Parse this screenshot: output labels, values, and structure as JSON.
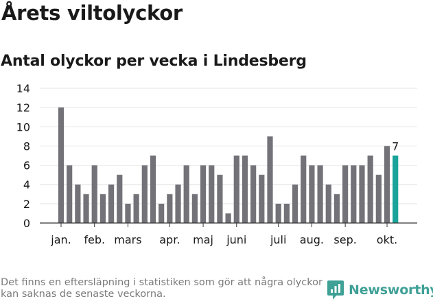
{
  "title": "Årets viltolyckor",
  "subtitle": "Antal olyckor per vecka i Lindesberg",
  "footnote": "Det finns en eftersläpning i statistiken som gör att några olyckor kan saknas de senaste veckorna.",
  "brand": {
    "name": "Newsworthy",
    "icon": "newsworthy-logo-icon"
  },
  "colors": {
    "bar": "#737278",
    "highlight": "#1aa39a",
    "grid": "#e6e6e6",
    "brand": "#3fa096"
  },
  "chart_data": {
    "type": "bar",
    "title": "Antal olyckor per vecka i Lindesberg",
    "xlabel": "",
    "ylabel": "",
    "ylim": [
      0,
      14
    ],
    "yticks": [
      0,
      2,
      4,
      6,
      8,
      10,
      12,
      14
    ],
    "grid": true,
    "weeks": [
      1,
      2,
      3,
      4,
      5,
      6,
      7,
      8,
      9,
      10,
      11,
      12,
      13,
      14,
      15,
      16,
      17,
      18,
      19,
      20,
      21,
      22,
      23,
      24,
      25,
      26,
      27,
      28,
      29,
      30,
      31,
      32,
      33,
      34,
      35,
      36,
      37,
      38,
      39,
      40,
      41
    ],
    "values": [
      12,
      6,
      4,
      3,
      6,
      3,
      4,
      5,
      2,
      3,
      6,
      7,
      2,
      3,
      4,
      6,
      3,
      6,
      6,
      5,
      1,
      7,
      7,
      6,
      5,
      9,
      2,
      2,
      4,
      7,
      6,
      6,
      4,
      3,
      6,
      6,
      6,
      7,
      5,
      8,
      7
    ],
    "highlight_last": true,
    "highlight_label": "7",
    "month_labels": [
      {
        "label": "jan.",
        "week": 1
      },
      {
        "label": "feb.",
        "week": 5
      },
      {
        "label": "mars",
        "week": 9
      },
      {
        "label": "apr.",
        "week": 14
      },
      {
        "label": "maj",
        "week": 18
      },
      {
        "label": "juni",
        "week": 22
      },
      {
        "label": "juli",
        "week": 27
      },
      {
        "label": "aug.",
        "week": 31
      },
      {
        "label": "sep.",
        "week": 35
      },
      {
        "label": "okt.",
        "week": 40
      }
    ]
  }
}
